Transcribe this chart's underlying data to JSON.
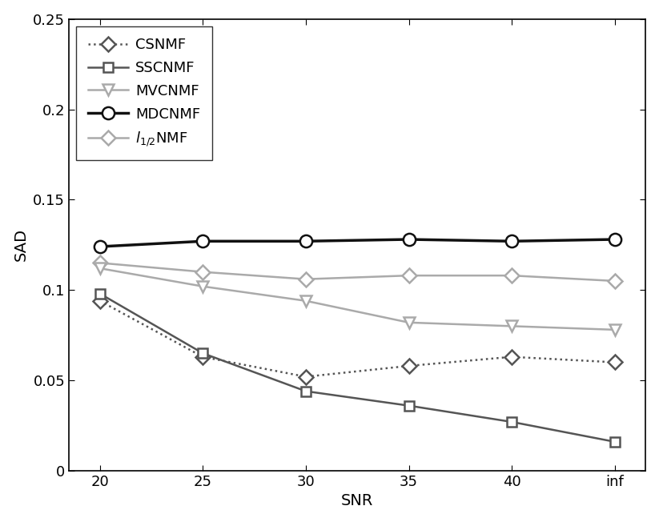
{
  "x_labels": [
    "20",
    "25",
    "30",
    "35",
    "40",
    "inf"
  ],
  "x_positions": [
    0,
    1,
    2,
    3,
    4,
    5
  ],
  "series": [
    {
      "label": "CSNMF",
      "values": [
        0.094,
        0.063,
        0.052,
        0.058,
        0.063,
        0.06
      ],
      "color": "#555555",
      "linestyle": "dotted",
      "marker": "D",
      "markersize": 9,
      "linewidth": 1.8,
      "zorder": 4
    },
    {
      "label": "SSCNMF",
      "values": [
        0.098,
        0.065,
        0.044,
        0.036,
        0.027,
        0.016
      ],
      "color": "#555555",
      "linestyle": "solid",
      "marker": "s",
      "markersize": 8,
      "linewidth": 1.8,
      "zorder": 5
    },
    {
      "label": "MVCNMF",
      "values": [
        0.112,
        0.102,
        0.094,
        0.082,
        0.08,
        0.078
      ],
      "color": "#aaaaaa",
      "linestyle": "solid",
      "marker": "v",
      "markersize": 10,
      "linewidth": 1.8,
      "zorder": 3
    },
    {
      "label": "MDCNMF",
      "values": [
        0.124,
        0.127,
        0.127,
        0.128,
        0.127,
        0.128
      ],
      "color": "#111111",
      "linestyle": "solid",
      "marker": "o",
      "markersize": 11,
      "linewidth": 2.5,
      "zorder": 6
    },
    {
      "label": "l_{1/2}NMF",
      "values": [
        0.115,
        0.11,
        0.106,
        0.108,
        0.108,
        0.105
      ],
      "color": "#aaaaaa",
      "linestyle": "solid",
      "marker": "D",
      "markersize": 9,
      "linewidth": 1.8,
      "zorder": 2
    }
  ],
  "xlabel": "SNR",
  "ylabel": "SAD",
  "ylim": [
    0,
    0.25
  ],
  "yticks": [
    0,
    0.05,
    0.1,
    0.15,
    0.2,
    0.25
  ],
  "legend_loc": "upper left",
  "background_color": "#ffffff",
  "figsize": [
    8.23,
    6.52
  ],
  "dpi": 100
}
